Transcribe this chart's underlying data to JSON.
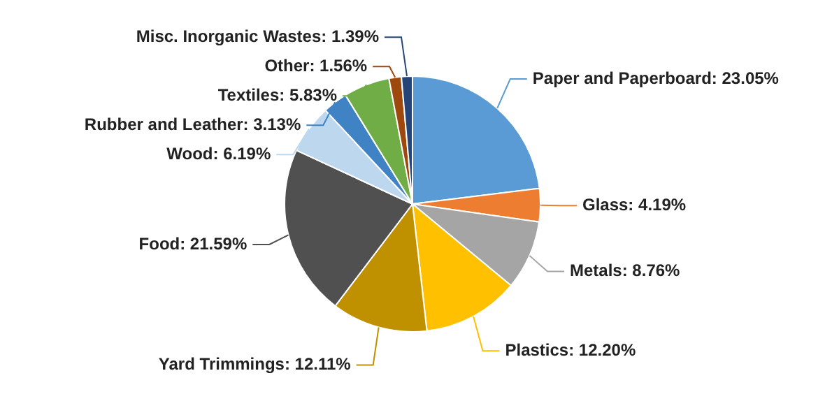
{
  "chart_data": {
    "type": "pie",
    "categories": [
      "Paper and Paperboard",
      "Glass",
      "Metals",
      "Plastics",
      "Yard Trimmings",
      "Food",
      "Wood",
      "Rubber and Leather",
      "Textiles",
      "Other",
      "Misc. Inorganic Wastes"
    ],
    "values": [
      23.05,
      4.19,
      8.76,
      12.2,
      12.11,
      21.59,
      6.19,
      3.13,
      5.83,
      1.56,
      1.39
    ],
    "value_labels": [
      "23.05%",
      "4.19%",
      "8.76%",
      "12.20%",
      "12.11%",
      "21.59%",
      "6.19%",
      "3.13%",
      "5.83%",
      "1.56%",
      "1.39%"
    ],
    "colors": [
      "#5b9bd5",
      "#ed7d31",
      "#a5a5a5",
      "#ffc000",
      "#bf9000",
      "#505050",
      "#bdd7ee",
      "#3f83c4",
      "#70ad47",
      "#9e480e",
      "#264478"
    ],
    "legend": false
  }
}
